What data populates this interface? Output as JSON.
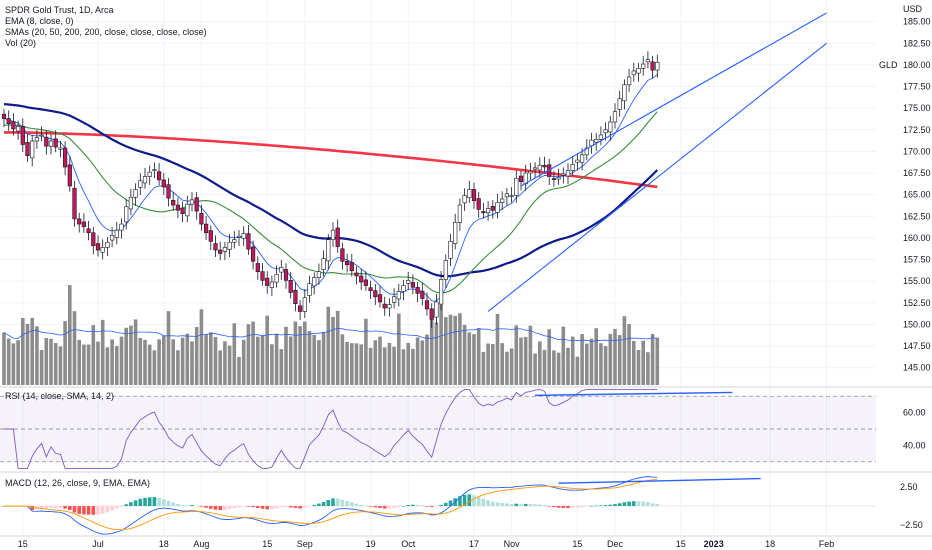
{
  "header": {
    "title": "SPDR Gold Trust, 1D, Arca",
    "ema_label": "EMA (8, close, 0)",
    "sma_label": "SMAs (20, 50, 200, 200, close, close, close, close)",
    "vol_label": "Vol (20)"
  },
  "rsi": {
    "label": "RSI (14, close, SMA, 14, 2)"
  },
  "macd": {
    "label": "MACD (12, 26, close, 9, EMA, EMA)"
  },
  "currency": "USD",
  "symbol_tag": "GLD",
  "colors": {
    "up": "#ffffff",
    "down": "#c2185b",
    "wick": "#131722",
    "ema8": "#2962ff",
    "sma20": "#388e3c",
    "sma50": "#0d1b8a",
    "sma200": "#f23645",
    "channel": "#2962ff",
    "volume": "#8c8c8c",
    "rsi": "#7e57c2",
    "macd_line": "#2962ff",
    "signal_line": "#ff9800",
    "hist_up_strong": "#26a69a",
    "hist_up_weak": "#b2dfdb",
    "hist_down_strong": "#ff5252",
    "hist_down_weak": "#ffcdd2"
  },
  "chart_data": [
    {
      "type": "candlestick",
      "title": "SPDR Gold Trust, 1D, Arca",
      "ylabel": "USD",
      "ylim": [
        143,
        187.5
      ],
      "y_ticks": [
        145,
        147.5,
        150,
        152.5,
        155,
        157.5,
        160,
        162.5,
        165,
        167.5,
        170,
        172.5,
        175,
        177.5,
        180,
        182.5,
        185
      ],
      "y_tick_labels": [
        "145.00",
        "147.50",
        "150.00",
        "152.50",
        "155.00",
        "157.50",
        "160.00",
        "162.50",
        "165.00",
        "167.50",
        "170.00",
        "172.50",
        "175.00",
        "177.50",
        "180.00",
        "182.50",
        "185.00"
      ],
      "x_tick_labels": [
        "15",
        "Jul",
        "18",
        "Aug",
        "15",
        "Sep",
        "19",
        "Oct",
        "17",
        "Nov",
        "15",
        "Dec",
        "15",
        "2023",
        "18",
        "Feb"
      ],
      "x_tick_bar_index": [
        4,
        20,
        34,
        42,
        56,
        64,
        78,
        86,
        100,
        108,
        122,
        130,
        144,
        151,
        163,
        175
      ],
      "close": [
        173.8,
        173.2,
        172.6,
        172.9,
        170.8,
        169.5,
        171.2,
        171.6,
        171.9,
        170.6,
        171.2,
        170.5,
        170.4,
        168.2,
        166.0,
        162.2,
        161.6,
        161.3,
        160.6,
        159.1,
        158.6,
        158.9,
        159.5,
        160.3,
        160.9,
        161.6,
        163.6,
        164.7,
        165.6,
        166.6,
        167.1,
        167.6,
        167.9,
        166.7,
        165.9,
        164.6,
        163.8,
        163.2,
        162.8,
        163.9,
        164.4,
        163.1,
        161.6,
        160.6,
        159.6,
        158.6,
        158.2,
        158.9,
        159.5,
        159.8,
        160.2,
        160.5,
        158.7,
        157.3,
        156.1,
        155.1,
        154.5,
        154.9,
        155.8,
        156.6,
        155.1,
        153.7,
        152.4,
        151.5,
        153.1,
        154.7,
        155.4,
        156.1,
        157.6,
        159.8,
        160.9,
        159.0,
        157.3,
        156.9,
        156.2,
        155.6,
        154.9,
        154.5,
        153.9,
        153.2,
        152.6,
        151.9,
        152.3,
        153.2,
        153.8,
        154.5,
        155.1,
        154.3,
        153.6,
        153.0,
        151.8,
        150.6,
        152.6,
        155.2,
        157.4,
        159.6,
        161.8,
        163.8,
        164.9,
        165.6,
        164.3,
        163.3,
        162.9,
        163.4,
        163.2,
        164.1,
        164.5,
        165.1,
        164.9,
        166.9,
        166.5,
        167.5,
        167.7,
        168.1,
        168.4,
        168.2,
        167.1,
        166.8,
        167.0,
        167.4,
        167.8,
        168.5,
        169.0,
        169.6,
        170.4,
        171.3,
        171.4,
        171.9,
        172.5,
        173.4,
        174.6,
        176.1,
        177.7,
        178.6,
        179.3,
        179.6,
        180.1,
        180.6,
        179.4,
        180.3
      ],
      "ema8_note": "EMA (8, close, 0)",
      "sma_periods": [
        20,
        50,
        200
      ],
      "volume_series": "Vol (20)",
      "channel_lines": [
        {
          "name": "upper",
          "from": {
            "bar": 110,
            "price": 166.0
          },
          "to": {
            "bar": 175,
            "price": 186.0
          }
        },
        {
          "name": "lower",
          "from": {
            "bar": 103,
            "price": 151.5
          },
          "to": {
            "bar": 175,
            "price": 182.5
          }
        }
      ]
    },
    {
      "type": "line",
      "title": "RSI (14, close, SMA, 14, 2)",
      "y_ticks": [
        40,
        60
      ],
      "y_tick_labels": [
        "40.00",
        "60.00"
      ],
      "ylim": [
        25,
        75
      ],
      "bands": [
        30,
        50,
        70
      ],
      "divergence_line": {
        "from": {
          "bar": 113,
          "value": 70.5
        },
        "to": {
          "bar": 155,
          "value": 72.3
        }
      }
    },
    {
      "type": "line",
      "title": "MACD (12, 26, close, 9, EMA, EMA)",
      "y_ticks": [
        2.5,
        -2.5
      ],
      "y_tick_labels": [
        "2.50",
        "−2.50"
      ],
      "ylim": [
        -3.8,
        4.2
      ],
      "divergence_line": {
        "from": {
          "bar": 118,
          "value": 3.0
        },
        "to": {
          "bar": 161,
          "value": 3.6
        }
      }
    }
  ]
}
